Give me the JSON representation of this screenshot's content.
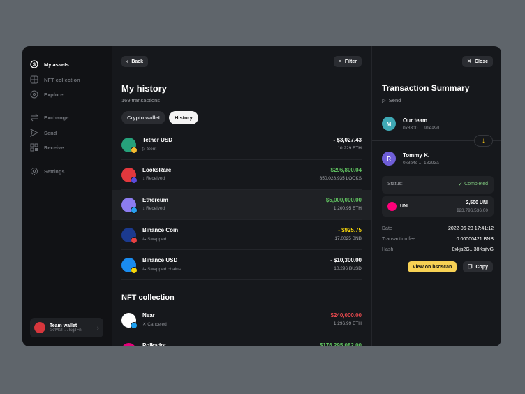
{
  "sidebar": {
    "items": [
      {
        "label": "My assets",
        "icon": "dollar-circle-icon",
        "active": true
      },
      {
        "label": "NFT collection",
        "icon": "grid-icon"
      },
      {
        "label": "Explore",
        "icon": "compass-icon"
      },
      {
        "label": "Exchange",
        "icon": "exchange-icon"
      },
      {
        "label": "Send",
        "icon": "send-icon"
      },
      {
        "label": "Receive",
        "icon": "qr-icon"
      },
      {
        "label": "Settings",
        "icon": "gear-icon"
      }
    ],
    "wallet": {
      "name": "Team wallet",
      "address": "skrMsT ... lsgJFn"
    }
  },
  "main": {
    "back": "Back",
    "filter": "Filter",
    "title": "My history",
    "count": "169 transactions",
    "tabs": [
      {
        "label": "Crypto wallet",
        "active": false
      },
      {
        "label": "History",
        "active": true
      }
    ],
    "rows": [
      {
        "name": "Tether USD",
        "action": "Sent",
        "amount": "- $3,027.43",
        "qty": "10.229 ETH",
        "color": "#ffffff",
        "coin": "#26a17b",
        "badge": "#f3ba2f"
      },
      {
        "name": "LooksRare",
        "action": "Received",
        "amount": "$296,800.04",
        "qty": "850,028,935 LOOKS",
        "color": "#5fbf5f",
        "coin": "#e2383d",
        "badge": "#5b4bdb"
      },
      {
        "name": "Ethereum",
        "action": "Received",
        "amount": "$5,000,000.00",
        "qty": "1,200.95 ETH",
        "color": "#5fbf5f",
        "coin": "#8c7cf0",
        "badge": "#28a0f0"
      },
      {
        "name": "Binance Coin",
        "action": "Swapped",
        "amount": "- $925.75",
        "qty": "17.0025 BNB",
        "color": "#f5d50a",
        "coin": "#1b3a8f",
        "badge": "#e84142"
      },
      {
        "name": "Binance USD",
        "action": "Swapped chains",
        "amount": "- $10,300.00",
        "qty": "10.296 BUSD",
        "color": "#ffffff",
        "coin": "#1a8cf0",
        "badge": "#f5d50a"
      }
    ],
    "nft_title": "NFT collection",
    "nft_rows": [
      {
        "name": "Near",
        "action": "Canceled",
        "amount": "$240,000.00",
        "qty": "1,296.99 ETH",
        "color": "#e5484d",
        "coin": "#ffffff",
        "badge": "#1da1f2"
      },
      {
        "name": "Polkadot",
        "action": "",
        "amount": "$176,295,082.00",
        "qty": "",
        "color": "#5fbf5f",
        "coin": "#e6007a",
        "badge": ""
      }
    ]
  },
  "summary": {
    "close": "Close",
    "title": "Transaction Summary",
    "type": "Send",
    "from": {
      "initial": "M",
      "name": "Our team",
      "address": "0x8300 ... 91ea9d"
    },
    "to": {
      "initial": "R",
      "name": "Tommy K.",
      "address": "0x8b4c ... 18293a"
    },
    "status_label": "Status:",
    "status": "Completed",
    "progress": 100,
    "token": {
      "symbol": "UNI",
      "amount": "2,500 UNI",
      "usd": "$23,796,536.00"
    },
    "details": [
      {
        "k": "Date",
        "v": "2022-06-23 17:41:12"
      },
      {
        "k": "Transaction fee",
        "v": "0.00000421 BNB"
      },
      {
        "k": "Hash",
        "v": "0xkjs2G...38KsjfvG"
      }
    ],
    "view": "View on bscscan",
    "copy": "Copy"
  }
}
